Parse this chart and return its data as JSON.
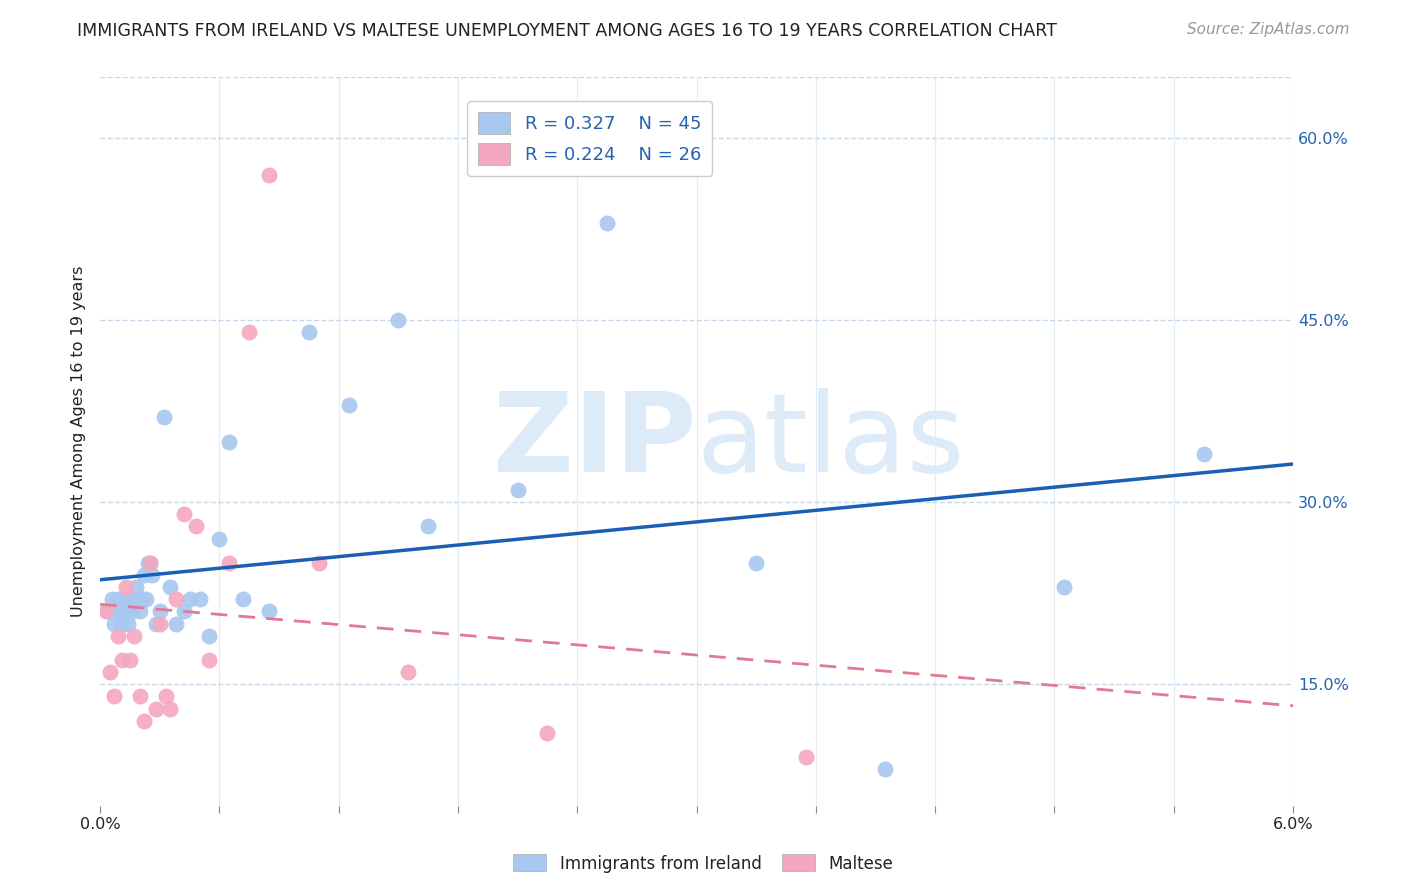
{
  "title": "IMMIGRANTS FROM IRELAND VS MALTESE UNEMPLOYMENT AMONG AGES 16 TO 19 YEARS CORRELATION CHART",
  "source": "Source: ZipAtlas.com",
  "ylabel": "Unemployment Among Ages 16 to 19 years",
  "legend_R1": "R = 0.327",
  "legend_N1": "N = 45",
  "legend_R2": "R = 0.224",
  "legend_N2": "N = 26",
  "legend_label1": "Immigrants from Ireland",
  "legend_label2": "Maltese",
  "blue_color": "#a8c8f0",
  "pink_color": "#f4a8c0",
  "blue_line_color": "#1a5fb4",
  "pink_line_color": "#e07898",
  "text_color_blue": "#2563b0",
  "text_color_dark": "#222222",
  "text_color_source": "#999999",
  "grid_color": "#c8d8ec",
  "background_color": "#ffffff",
  "watermark_color": "#ddeaf8",
  "xmin": 0.0,
  "xmax": 6.0,
  "ymin": 5.0,
  "ymax": 65.0,
  "ytick_vals": [
    15.0,
    30.0,
    45.0,
    60.0
  ],
  "xtick_minor_count": 10,
  "title_fontsize": 12.5,
  "axis_tick_fontsize": 11.5,
  "ylabel_fontsize": 11.5,
  "source_fontsize": 11,
  "legend_fontsize": 13,
  "watermark_fontsize": 80,
  "blue_x": [
    0.04,
    0.06,
    0.07,
    0.08,
    0.09,
    0.1,
    0.11,
    0.12,
    0.13,
    0.14,
    0.15,
    0.16,
    0.17,
    0.18,
    0.19,
    0.2,
    0.21,
    0.22,
    0.23,
    0.24,
    0.25,
    0.26,
    0.28,
    0.3,
    0.32,
    0.35,
    0.38,
    0.42,
    0.45,
    0.5,
    0.55,
    0.6,
    0.65,
    0.72,
    0.85,
    1.05,
    1.25,
    1.5,
    1.65,
    2.1,
    2.55,
    3.3,
    3.95,
    4.85,
    5.55
  ],
  "blue_y": [
    21,
    22,
    20,
    21,
    22,
    21,
    20,
    22,
    21,
    20,
    22,
    21,
    22,
    23,
    22,
    21,
    22,
    24,
    22,
    25,
    25,
    24,
    20,
    21,
    37,
    23,
    20,
    21,
    22,
    22,
    19,
    27,
    35,
    22,
    21,
    44,
    38,
    45,
    28,
    31,
    53,
    25,
    8,
    23,
    34
  ],
  "pink_x": [
    0.03,
    0.05,
    0.07,
    0.09,
    0.11,
    0.13,
    0.15,
    0.17,
    0.2,
    0.22,
    0.25,
    0.28,
    0.3,
    0.33,
    0.35,
    0.38,
    0.42,
    0.48,
    0.55,
    0.65,
    0.75,
    0.85,
    1.1,
    1.55,
    2.25,
    3.55
  ],
  "pink_y": [
    21,
    16,
    14,
    19,
    17,
    23,
    17,
    19,
    14,
    12,
    25,
    13,
    20,
    14,
    13,
    22,
    29,
    28,
    17,
    25,
    44,
    57,
    25,
    16,
    11,
    9
  ]
}
